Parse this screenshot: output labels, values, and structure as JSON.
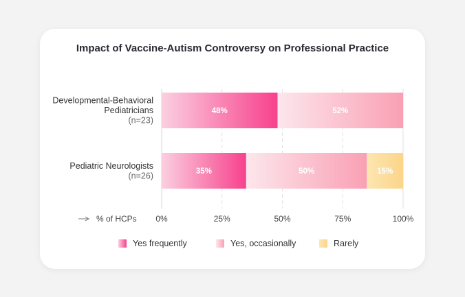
{
  "chart_data": {
    "type": "bar",
    "orientation": "horizontal",
    "stacked": true,
    "title": "Impact of Vaccine-Autism Controversy on Professional Practice",
    "xlabel": "% of HCPs",
    "xlim": [
      0,
      100
    ],
    "x_ticks": [
      "0%",
      "25%",
      "50%",
      "75%",
      "100%"
    ],
    "categories": [
      {
        "label_lines": [
          "Developmental-Behavioral",
          "Pediatricians"
        ],
        "n_label": "(n=23)"
      },
      {
        "label_lines": [
          "Pediatric Neurologists"
        ],
        "n_label": "(n=26)"
      }
    ],
    "series": [
      {
        "name": "Yes frequently",
        "values": [
          48,
          35
        ],
        "labels": [
          "48%",
          "35%"
        ],
        "color_start": "#fbcfe0",
        "color_end": "#f7418c"
      },
      {
        "name": "Yes, occasionally",
        "values": [
          52,
          50
        ],
        "labels": [
          "52%",
          "50%"
        ],
        "color_start": "#fde6ec",
        "color_end": "#f9a0b4"
      },
      {
        "name": "Rarely",
        "values": [
          0,
          15
        ],
        "labels": [
          "",
          "15%"
        ],
        "color_start": "#fde6b0",
        "color_end": "#fbd58a"
      }
    ],
    "grid": "vertical dashed",
    "legend": "bottom"
  }
}
